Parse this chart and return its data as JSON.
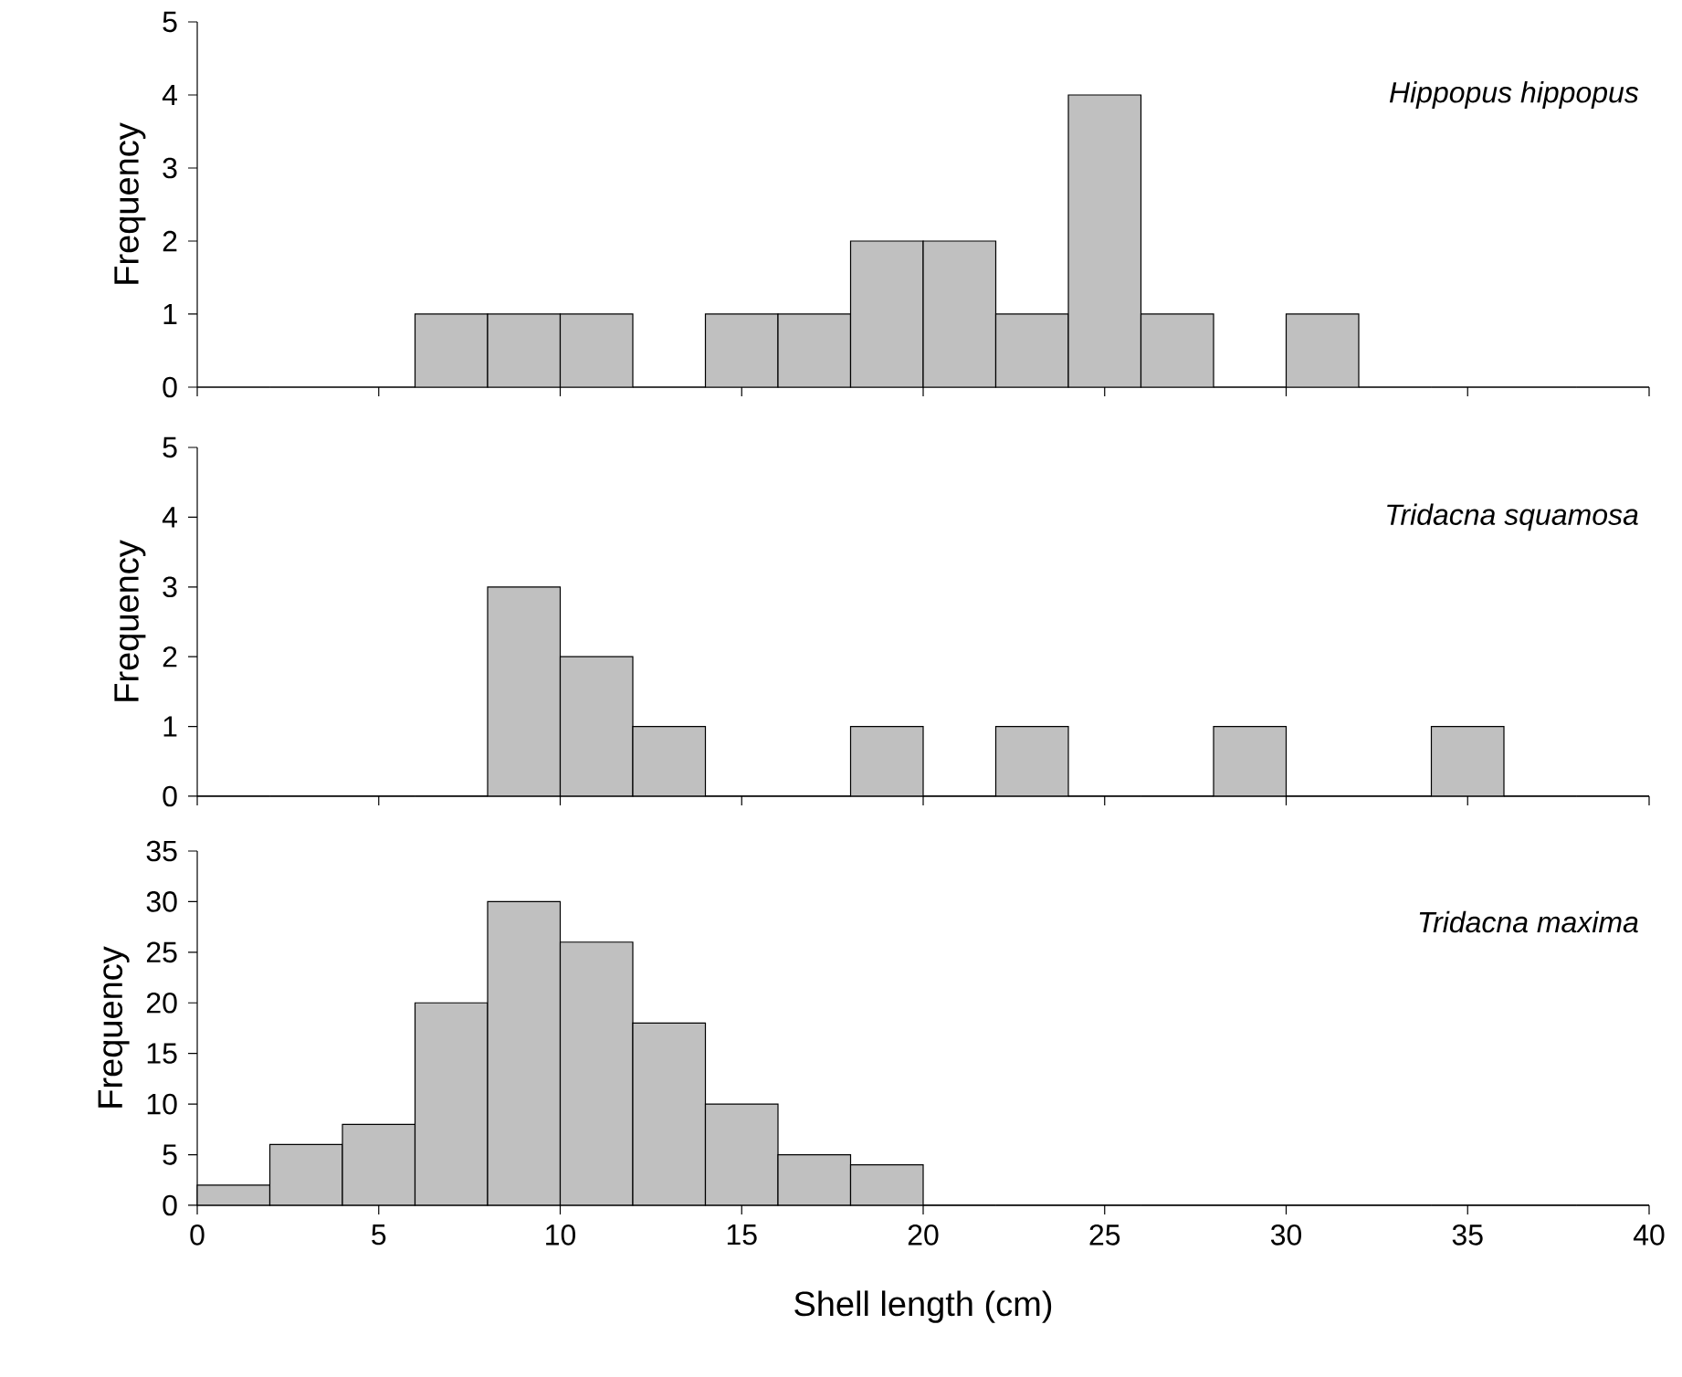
{
  "chart_data": [
    {
      "type": "histogram",
      "ylabel": "Frequency",
      "annotations": [
        "Hippopus hippopus"
      ],
      "color": "#c0c0c0",
      "bins": [
        0,
        2,
        4,
        6,
        8,
        10,
        12,
        14,
        16,
        18,
        20,
        22,
        24,
        26,
        28,
        30,
        32,
        34,
        36,
        38,
        40
      ],
      "values": [
        0,
        0,
        0,
        1,
        1,
        1,
        0,
        1,
        1,
        2,
        2,
        1,
        4,
        1,
        0,
        1,
        0,
        0,
        0,
        0
      ],
      "xlim": [
        0,
        40
      ],
      "xticks": [
        0,
        5,
        10,
        15,
        20,
        25,
        30,
        35,
        40
      ],
      "ylim": [
        0,
        5
      ],
      "yticks": [
        0,
        1,
        2,
        3,
        4,
        5
      ],
      "tick_labels": "y"
    },
    {
      "type": "histogram",
      "ylabel": "Frequency",
      "annotations": [
        "Tridacna squamosa"
      ],
      "color": "#c0c0c0",
      "bins": [
        0,
        2,
        4,
        6,
        8,
        10,
        12,
        14,
        16,
        18,
        20,
        22,
        24,
        26,
        28,
        30,
        32,
        34,
        36,
        38,
        40
      ],
      "values": [
        0,
        0,
        0,
        0,
        3,
        2,
        1,
        0,
        0,
        1,
        0,
        1,
        0,
        0,
        1,
        0,
        0,
        1,
        0,
        0
      ],
      "xlim": [
        0,
        40
      ],
      "xticks": [
        0,
        5,
        10,
        15,
        20,
        25,
        30,
        35,
        40
      ],
      "ylim": [
        0,
        5
      ],
      "yticks": [
        0,
        1,
        2,
        3,
        4,
        5
      ],
      "tick_labels": "y"
    },
    {
      "type": "histogram",
      "ylabel": "Frequency",
      "xlabel": "Shell length (cm)",
      "annotations": [
        "Tridacna maxima"
      ],
      "color": "#c0c0c0",
      "bins": [
        0,
        2,
        4,
        6,
        8,
        10,
        12,
        14,
        16,
        18,
        20,
        22,
        24,
        26,
        28,
        30,
        32,
        34,
        36,
        38,
        40
      ],
      "values": [
        2,
        6,
        8,
        20,
        30,
        26,
        18,
        10,
        5,
        4,
        0,
        0,
        0,
        0,
        0,
        0,
        0,
        0,
        0,
        0
      ],
      "xlim": [
        0,
        40
      ],
      "xticks": [
        0,
        5,
        10,
        15,
        20,
        25,
        30,
        35,
        40
      ],
      "ylim": [
        0,
        35
      ],
      "yticks": [
        0,
        5,
        10,
        15,
        20,
        25,
        30,
        35
      ]
    }
  ]
}
